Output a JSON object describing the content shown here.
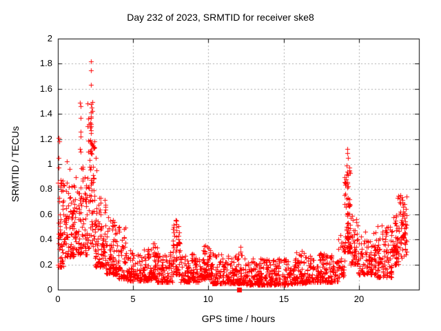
{
  "page": {
    "background": "#ffffff",
    "foreground": "#000000"
  },
  "chart_data": {
    "type": "scatter",
    "title": "Day 232 of 2023, SRMTID for receiver ske8",
    "xlabel": "GPS time / hours",
    "ylabel": "SRMTID / TECUs",
    "xlim": [
      0,
      24
    ],
    "ylim": [
      0,
      2
    ],
    "xticks": {
      "values": [
        0,
        5,
        10,
        15,
        20
      ],
      "labels": [
        "0",
        "5",
        "10",
        "15",
        "20"
      ]
    },
    "yticks": {
      "values": [
        0,
        0.2,
        0.4,
        0.6,
        0.8,
        1,
        1.2,
        1.4,
        1.6,
        1.8,
        2
      ],
      "labels": [
        "0",
        "0.2",
        "0.4",
        "0.6",
        "0.8",
        "1",
        "1.2",
        "1.4",
        "1.6",
        "1.8",
        "2"
      ]
    },
    "grid": {
      "shown": true,
      "color": "#a8a8a8",
      "dash": [
        2,
        3
      ]
    },
    "legend": "none",
    "marker": {
      "shape": "plus",
      "color": "#ff0000",
      "size": 7
    },
    "axis_color": "#000000",
    "tick_length": 6,
    "seed": 7,
    "bins_schema": "each bin = [x_start_hours, x_end_hours, point_count, y_min_TECU, y_max_TECU, low_bias_exponent, column_clusters]",
    "density_bins": [
      [
        0.0,
        0.35,
        55,
        0.18,
        0.88,
        1.6,
        3
      ],
      [
        0.35,
        1.15,
        95,
        0.26,
        0.85,
        1.8,
        6
      ],
      [
        1.15,
        1.95,
        95,
        0.28,
        0.98,
        1.9,
        6
      ],
      [
        1.95,
        2.45,
        75,
        0.33,
        1.5,
        1.4,
        4
      ],
      [
        2.45,
        3.2,
        95,
        0.18,
        0.75,
        1.9,
        6
      ],
      [
        3.2,
        4.0,
        95,
        0.12,
        0.58,
        2.0,
        6
      ],
      [
        4.0,
        4.6,
        65,
        0.09,
        0.5,
        2.2,
        4
      ],
      [
        4.6,
        6.2,
        150,
        0.07,
        0.33,
        2.0,
        0
      ],
      [
        6.2,
        6.6,
        45,
        0.09,
        0.38,
        2.0,
        0
      ],
      [
        6.6,
        7.6,
        95,
        0.06,
        0.3,
        2.0,
        0
      ],
      [
        7.6,
        8.15,
        60,
        0.12,
        0.56,
        1.4,
        3
      ],
      [
        8.15,
        9.4,
        115,
        0.06,
        0.29,
        2.0,
        0
      ],
      [
        9.4,
        10.2,
        85,
        0.08,
        0.36,
        2.2,
        0
      ],
      [
        10.2,
        12.4,
        200,
        0.05,
        0.29,
        2.2,
        0
      ],
      [
        12.4,
        15.6,
        290,
        0.04,
        0.25,
        2.1,
        0
      ],
      [
        15.6,
        16.5,
        85,
        0.05,
        0.31,
        2.1,
        0
      ],
      [
        16.5,
        18.6,
        185,
        0.06,
        0.29,
        2.1,
        0
      ],
      [
        18.6,
        19.05,
        42,
        0.1,
        0.45,
        1.6,
        0
      ],
      [
        19.05,
        19.45,
        75,
        0.3,
        0.98,
        1.2,
        3
      ],
      [
        19.45,
        19.95,
        48,
        0.2,
        0.63,
        1.7,
        0
      ],
      [
        19.95,
        21.1,
        95,
        0.12,
        0.47,
        1.9,
        0
      ],
      [
        21.1,
        22.2,
        105,
        0.1,
        0.52,
        1.8,
        0
      ],
      [
        22.2,
        22.7,
        55,
        0.2,
        0.6,
        1.4,
        0
      ],
      [
        22.7,
        23.2,
        60,
        0.25,
        0.76,
        1.1,
        0
      ]
    ],
    "highlight_points": [
      [
        0.04,
        1.21
      ],
      [
        0.07,
        1.18
      ],
      [
        0.04,
        1.05
      ],
      [
        0.05,
        0.97
      ],
      [
        0.6,
        1.02
      ],
      [
        0.78,
        0.96
      ],
      [
        1.48,
        1.49
      ],
      [
        1.53,
        1.46
      ],
      [
        1.5,
        1.37
      ],
      [
        1.49,
        1.26
      ],
      [
        1.53,
        1.22
      ],
      [
        1.47,
        1.12
      ],
      [
        1.51,
        1.1
      ],
      [
        2.18,
        1.82
      ],
      [
        2.18,
        1.75
      ],
      [
        2.2,
        1.63
      ],
      [
        2.2,
        1.48
      ],
      [
        2.24,
        1.45
      ],
      [
        2.2,
        1.37
      ],
      [
        2.19,
        1.3
      ],
      [
        2.22,
        1.25
      ],
      [
        2.17,
        1.18
      ],
      [
        2.21,
        1.17
      ],
      [
        2.24,
        1.16
      ],
      [
        2.27,
        1.15
      ],
      [
        2.52,
        1.05
      ],
      [
        2.55,
        0.95
      ],
      [
        7.85,
        0.55
      ],
      [
        7.88,
        0.52
      ],
      [
        7.9,
        0.5
      ],
      [
        19.22,
        1.12
      ],
      [
        19.25,
        1.09
      ],
      [
        19.28,
        1.05
      ],
      [
        19.2,
        0.99
      ],
      [
        9.82,
        0.35
      ],
      [
        12.12,
        0.34
      ],
      [
        12.15,
        0.3
      ],
      [
        16.2,
        0.31
      ],
      [
        22.62,
        0.75
      ],
      [
        22.58,
        0.73
      ]
    ],
    "special_points": [
      {
        "x": 12.05,
        "y": 0.0,
        "marker": "filled-square",
        "color": "#ff0000",
        "size": 7
      }
    ]
  }
}
